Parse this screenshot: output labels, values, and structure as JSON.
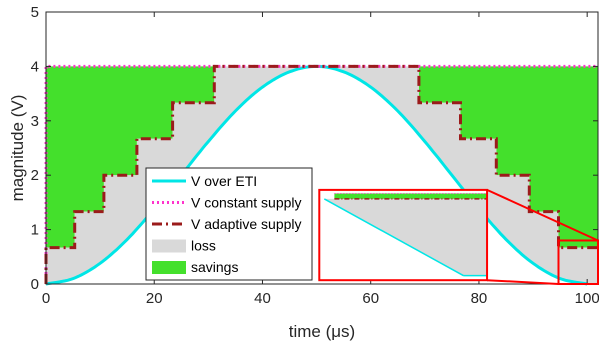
{
  "chart_data": {
    "type": "area",
    "xlabel": "time (μs)",
    "ylabel": "magnitude (V)",
    "xlim": [
      0,
      102
    ],
    "ylim": [
      0,
      5
    ],
    "xticks": [
      "0",
      "20",
      "40",
      "60",
      "80",
      "100"
    ],
    "yticks": [
      "0",
      "1",
      "2",
      "3",
      "4",
      "5"
    ],
    "grid": false,
    "legend_position": "bottom-left",
    "series": [
      {
        "name": "V over ETI",
        "kind": "line",
        "color": "#00e6e6",
        "x": [
          0,
          5,
          10,
          15,
          20,
          25,
          30,
          35,
          40,
          45,
          50,
          55,
          60,
          65,
          70,
          75,
          80,
          85,
          90,
          95,
          100
        ],
        "y": [
          0,
          0.1,
          0.38,
          0.82,
          1.38,
          2.0,
          2.62,
          3.18,
          3.62,
          3.9,
          4.0,
          3.9,
          3.62,
          3.18,
          2.62,
          2.0,
          1.38,
          0.82,
          0.38,
          0.1,
          0
        ]
      },
      {
        "name": "V constant supply",
        "kind": "dotted-line",
        "color": "#ff33cc",
        "x": [
          0,
          0,
          102
        ],
        "y": [
          0,
          4,
          4
        ]
      },
      {
        "name": "V adaptive supply",
        "kind": "dash-dot-step",
        "color": "#9b1b1b",
        "x": [
          0,
          0,
          5.3,
          5.3,
          10.7,
          10.7,
          16.8,
          16.8,
          23.4,
          23.4,
          31.1,
          31.1,
          68.9,
          68.9,
          76.6,
          76.6,
          83.2,
          83.2,
          89.3,
          89.3,
          94.7,
          94.7,
          102
        ],
        "y": [
          0,
          0.67,
          0.67,
          1.33,
          1.33,
          2.0,
          2.0,
          2.67,
          2.67,
          3.33,
          3.33,
          4.0,
          4.0,
          3.33,
          3.33,
          2.67,
          2.67,
          2.0,
          2.0,
          1.33,
          1.33,
          0.67,
          0.67
        ]
      },
      {
        "name": "loss",
        "kind": "area",
        "color": "#d9d9d9",
        "description_of_region": "between V adaptive supply and V over ETI"
      },
      {
        "name": "savings",
        "kind": "area",
        "color": "#44e02c",
        "description_of_region": "between V constant supply and V adaptive supply"
      }
    ],
    "zoom_box": {
      "x": [
        94.7,
        102
      ],
      "y": [
        0,
        0.8
      ],
      "color": "#ff0000"
    },
    "inset_box": {
      "x": [
        50.5,
        81.5
      ],
      "y": [
        0.07,
        1.73
      ],
      "color": "#ff0000"
    }
  }
}
